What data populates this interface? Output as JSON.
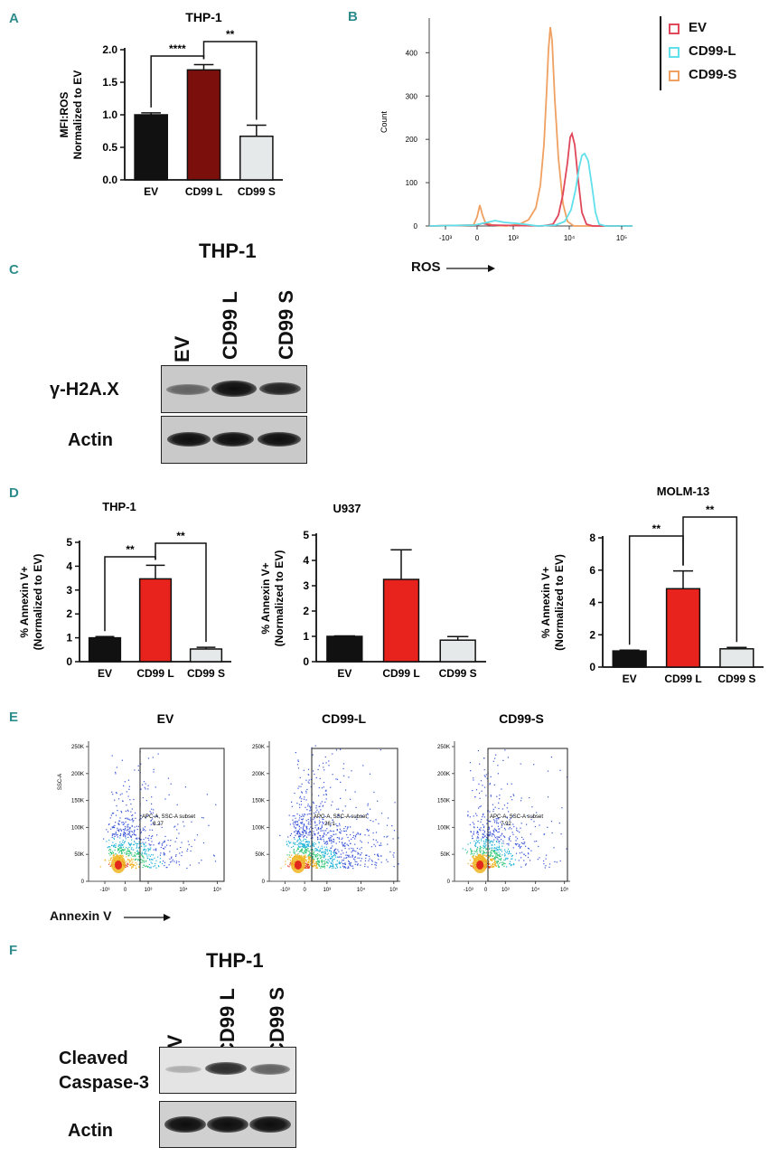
{
  "panels": {
    "A": "A",
    "B": "B",
    "C": "C",
    "D": "D",
    "E": "E",
    "F": "F"
  },
  "colors": {
    "black": "#111111",
    "darkred": "#7b0f0c",
    "red": "#e8231d",
    "grey": "#e6e9ea",
    "ev": "#e0475b",
    "cd99l": "#60e0ea",
    "cd99s": "#f0a060",
    "label": "#2e8b8b"
  },
  "panelA": {
    "chart_data": {
      "type": "bar",
      "title": "THP-1",
      "ylabel_line1": "MFI:ROS",
      "ylabel_line2": "Normalized to EV",
      "categories": [
        "EV",
        "CD99 L",
        "CD99 S"
      ],
      "values": [
        1.0,
        1.69,
        0.67
      ],
      "errors": [
        0.03,
        0.08,
        0.17
      ],
      "ylim": [
        0,
        2.0
      ],
      "yticks": [
        "0.0",
        "0.5",
        "1.0",
        "1.5",
        "2.0"
      ],
      "significance": [
        {
          "from": 0,
          "to": 1,
          "label": "****"
        },
        {
          "from": 1,
          "to": 2,
          "label": "**"
        }
      ]
    }
  },
  "panelB": {
    "chart_data": {
      "type": "line",
      "ylabel": "Count",
      "xlabel": "ROS",
      "ylim": [
        0,
        480
      ],
      "yticks": [
        "0",
        "100",
        "200",
        "300",
        "400"
      ],
      "xticks": [
        "-10³",
        "0",
        "10³",
        "10⁴",
        "10⁵"
      ],
      "legend": [
        "EV",
        "CD99-L",
        "CD99-S"
      ],
      "series": [
        {
          "name": "EV",
          "peak_x": "~1.1×10⁴",
          "peak_count": 215
        },
        {
          "name": "CD99-L",
          "peak_x": "~2×10⁴",
          "peak_count": 175
        },
        {
          "name": "CD99-S",
          "peak_x": "~4×10³",
          "peak_count": 465
        }
      ]
    }
  },
  "panelC": {
    "title": "THP-1",
    "lanes": [
      "EV",
      "CD99 L",
      "CD99 S"
    ],
    "rows": [
      "γ-H2A.X",
      "Actin"
    ]
  },
  "panelD": {
    "chart_data": [
      {
        "type": "bar",
        "title": "THP-1",
        "ylabel_line1": "% Annexin V+",
        "ylabel_line2": "(Normalized to EV)",
        "categories": [
          "EV",
          "CD99 L",
          "CD99 S"
        ],
        "values": [
          1.0,
          3.47,
          0.53
        ],
        "errors": [
          0.05,
          0.57,
          0.07
        ],
        "ylim": [
          0,
          5
        ],
        "yticks": [
          "0",
          "1",
          "2",
          "3",
          "4",
          "5"
        ],
        "significance": [
          {
            "from": 0,
            "to": 1,
            "label": "**"
          },
          {
            "from": 1,
            "to": 2,
            "label": "**"
          }
        ]
      },
      {
        "type": "bar",
        "title": "U937",
        "ylabel_line1": "% Annexin V+",
        "ylabel_line2": "(Normalized to EV)",
        "categories": [
          "EV",
          "CD99 L",
          "CD99 S"
        ],
        "values": [
          1.0,
          3.25,
          0.85
        ],
        "errors": [
          0.02,
          1.17,
          0.14
        ],
        "ylim": [
          0,
          5
        ],
        "yticks": [
          "0",
          "1",
          "2",
          "3",
          "4",
          "5"
        ],
        "significance": []
      },
      {
        "type": "bar",
        "title": "MOLM-13",
        "ylabel_line1": "% Annexin V+",
        "ylabel_line2": "(Normalized to EV)",
        "categories": [
          "EV",
          "CD99 L",
          "CD99 S"
        ],
        "values": [
          1.0,
          4.85,
          1.13
        ],
        "errors": [
          0.05,
          1.1,
          0.09
        ],
        "ylim": [
          0,
          8
        ],
        "yticks": [
          "0",
          "2",
          "4",
          "6",
          "8"
        ],
        "significance": [
          {
            "from": 0,
            "to": 1,
            "label": "**"
          },
          {
            "from": 1,
            "to": 2,
            "label": "**"
          }
        ]
      }
    ]
  },
  "panelE": {
    "xlabel": "Annexin V",
    "ylabel": "SSC-A",
    "yticks": [
      "0",
      "50K",
      "100K",
      "150K",
      "200K",
      "250K"
    ],
    "xticks": [
      "-10³",
      "0",
      "10³",
      "10⁴",
      "10⁵"
    ],
    "plots": [
      {
        "title": "EV",
        "gate_label": "APC-A, SSC-A subset",
        "gate_value": "8.27"
      },
      {
        "title": "CD99-L",
        "gate_label": "APC-A, SSC-A subset",
        "gate_value": "26.1"
      },
      {
        "title": "CD99-S",
        "gate_label": "APC-A, SSC-A subset",
        "gate_value": "7.92"
      }
    ]
  },
  "panelF": {
    "title": "THP-1",
    "lanes": [
      "EV",
      "CD99 L",
      "CD99 S"
    ],
    "rows": [
      "Cleaved",
      "Caspase-3",
      "Actin"
    ]
  }
}
